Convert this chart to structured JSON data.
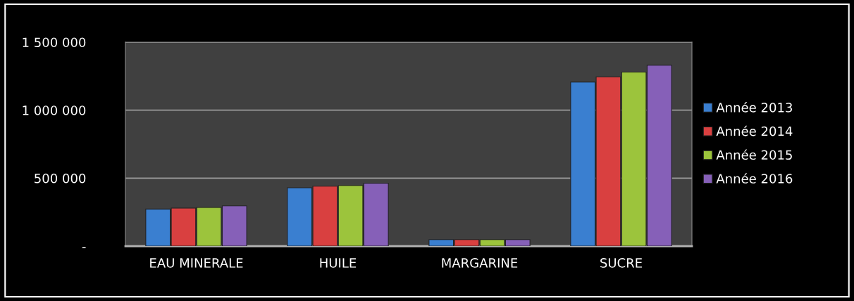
{
  "chart_data": {
    "type": "bar",
    "categories": [
      "EAU MINERALE",
      "HUILE",
      "MARGARINE",
      "SUCRE"
    ],
    "series": [
      {
        "name": "Année 2013",
        "color": "#3a7fd0",
        "values": [
          273000,
          429000,
          48000,
          1207000
        ]
      },
      {
        "name": "Année 2014",
        "color": "#d94040",
        "values": [
          280000,
          441000,
          48000,
          1245000
        ]
      },
      {
        "name": "Année 2015",
        "color": "#9cc43c",
        "values": [
          285000,
          446000,
          48000,
          1280000
        ]
      },
      {
        "name": "Année 2016",
        "color": "#8660b8",
        "values": [
          296000,
          463000,
          48000,
          1331000
        ]
      }
    ],
    "ylim": [
      0,
      1500000
    ],
    "yticks": [
      {
        "value": 0,
        "label": "-"
      },
      {
        "value": 500000,
        "label": "500 000"
      },
      {
        "value": 1000000,
        "label": "1 000 000"
      },
      {
        "value": 1500000,
        "label": "1 500 000"
      }
    ],
    "grid": "y",
    "legend": "right"
  }
}
